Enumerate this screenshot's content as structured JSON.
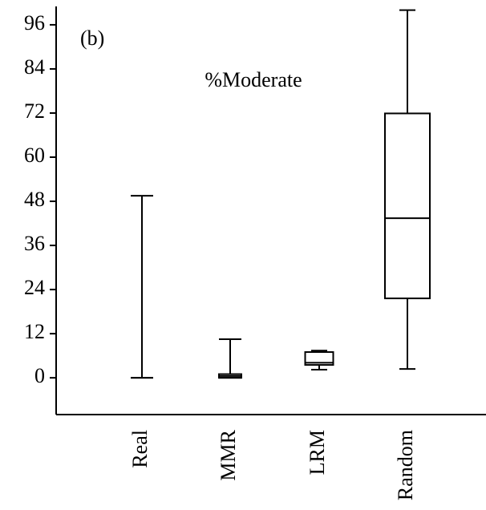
{
  "chart_data": {
    "type": "box",
    "title": "%Moderate",
    "panel_label": "(b)",
    "categories": [
      "Real",
      "MMR",
      "LRM",
      "Random"
    ],
    "boxes": [
      {
        "min": 0,
        "q1": 0,
        "median": 0,
        "q3": 0,
        "max": 49.5
      },
      {
        "min": 0,
        "q1": 0,
        "median": 0.5,
        "q3": 1,
        "max": 10.5
      },
      {
        "min": 2.2,
        "q1": 3.5,
        "median": 4.1,
        "q3": 7,
        "max": 7.4
      },
      {
        "min": 2.4,
        "q1": 21.6,
        "median": 43.4,
        "q3": 71.9,
        "max": 100
      }
    ],
    "color": "#000000",
    "ylim": [
      -10,
      101
    ],
    "yticks": [
      0,
      12,
      24,
      36,
      48,
      60,
      72,
      84,
      96
    ]
  }
}
